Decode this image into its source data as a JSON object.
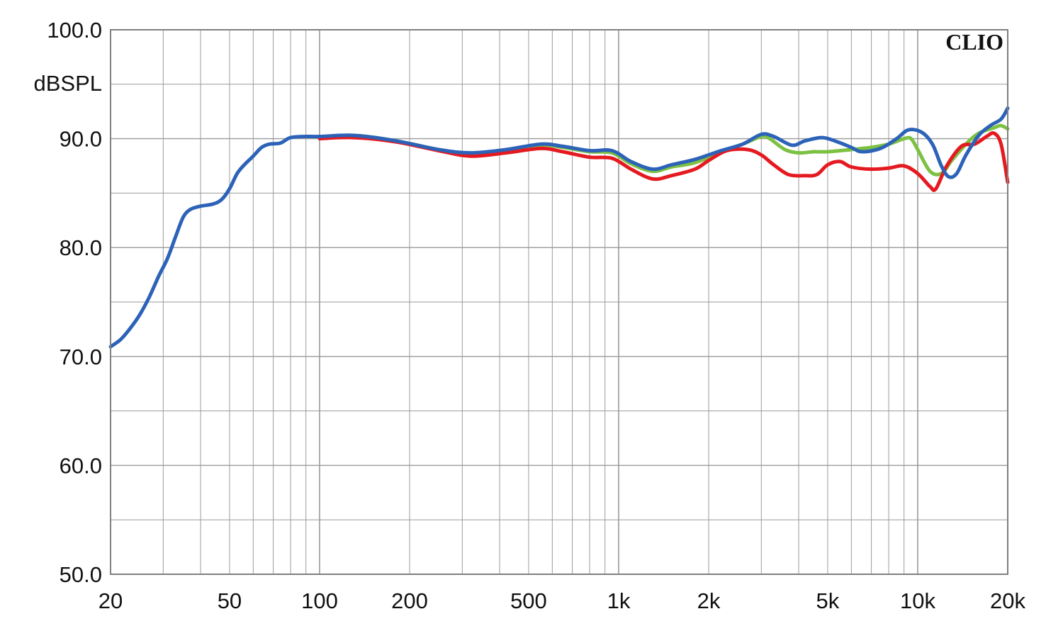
{
  "chart_data": {
    "type": "line",
    "brand": "CLIO",
    "ylabel": "dBSPL",
    "xscale": "log",
    "xlim": [
      20,
      20000
    ],
    "ylim": [
      50,
      100
    ],
    "grid": true,
    "colors": {
      "grid": "#9a9a9a",
      "frame": "#808080"
    },
    "x_tick_values": [
      20,
      50,
      100,
      200,
      500,
      1000,
      2000,
      5000,
      10000,
      20000
    ],
    "x_tick_labels": [
      "20",
      "50",
      "100",
      "200",
      "500",
      "1k",
      "2k",
      "5k",
      "10k",
      "20k"
    ],
    "y_tick_values": [
      100,
      90,
      80,
      70,
      60,
      50
    ],
    "y_tick_labels": [
      "100.0",
      "90.0",
      "80.0",
      "70.0",
      "60.0",
      "50.0"
    ],
    "series": [
      {
        "color": "#7cc142",
        "points": [
          [
            100,
            90.0
          ],
          [
            130,
            90.3
          ],
          [
            180,
            89.8
          ],
          [
            250,
            89.0
          ],
          [
            320,
            88.6
          ],
          [
            420,
            88.9
          ],
          [
            550,
            89.4
          ],
          [
            650,
            89.2
          ],
          [
            800,
            88.8
          ],
          [
            950,
            88.7
          ],
          [
            1100,
            87.7
          ],
          [
            1300,
            87.0
          ],
          [
            1500,
            87.4
          ],
          [
            1800,
            87.8
          ],
          [
            2200,
            88.8
          ],
          [
            2600,
            89.5
          ],
          [
            3000,
            90.2
          ],
          [
            3200,
            90.0
          ],
          [
            3600,
            89.0
          ],
          [
            4000,
            88.7
          ],
          [
            4500,
            88.8
          ],
          [
            5000,
            88.8
          ],
          [
            6000,
            89.0
          ],
          [
            7000,
            89.2
          ],
          [
            8000,
            89.5
          ],
          [
            9000,
            90.0
          ],
          [
            9500,
            90.0
          ],
          [
            10000,
            89.0
          ],
          [
            11000,
            87.0
          ],
          [
            12000,
            86.8
          ],
          [
            13000,
            88.0
          ],
          [
            14500,
            89.5
          ],
          [
            16000,
            90.5
          ],
          [
            18000,
            91.0
          ],
          [
            19000,
            91.2
          ],
          [
            20000,
            90.9
          ]
        ]
      },
      {
        "color": "#e51a20",
        "points": [
          [
            100,
            90.0
          ],
          [
            130,
            90.1
          ],
          [
            180,
            89.7
          ],
          [
            250,
            88.9
          ],
          [
            320,
            88.4
          ],
          [
            420,
            88.7
          ],
          [
            550,
            89.1
          ],
          [
            650,
            88.8
          ],
          [
            800,
            88.3
          ],
          [
            950,
            88.2
          ],
          [
            1100,
            87.2
          ],
          [
            1300,
            86.3
          ],
          [
            1500,
            86.6
          ],
          [
            1800,
            87.2
          ],
          [
            2000,
            88.0
          ],
          [
            2300,
            88.9
          ],
          [
            2700,
            89.0
          ],
          [
            3000,
            88.5
          ],
          [
            3300,
            87.6
          ],
          [
            3700,
            86.7
          ],
          [
            4200,
            86.6
          ],
          [
            4600,
            86.7
          ],
          [
            5000,
            87.6
          ],
          [
            5500,
            87.9
          ],
          [
            6000,
            87.4
          ],
          [
            7000,
            87.2
          ],
          [
            8000,
            87.3
          ],
          [
            9000,
            87.5
          ],
          [
            10000,
            86.8
          ],
          [
            11000,
            85.6
          ],
          [
            11500,
            85.4
          ],
          [
            12500,
            87.5
          ],
          [
            14000,
            89.3
          ],
          [
            15500,
            89.5
          ],
          [
            17000,
            90.2
          ],
          [
            18000,
            90.5
          ],
          [
            19000,
            89.5
          ],
          [
            20000,
            86.0
          ]
        ]
      },
      {
        "color": "#2c62b8",
        "points": [
          [
            20,
            70.9
          ],
          [
            21.5,
            71.5
          ],
          [
            23,
            72.4
          ],
          [
            25,
            73.8
          ],
          [
            27,
            75.5
          ],
          [
            29,
            77.4
          ],
          [
            31,
            79.0
          ],
          [
            33,
            81.0
          ],
          [
            35,
            82.8
          ],
          [
            37,
            83.5
          ],
          [
            40,
            83.8
          ],
          [
            44,
            84.0
          ],
          [
            47,
            84.4
          ],
          [
            50,
            85.4
          ],
          [
            53,
            86.8
          ],
          [
            56,
            87.6
          ],
          [
            60,
            88.4
          ],
          [
            64,
            89.2
          ],
          [
            68,
            89.5
          ],
          [
            74,
            89.6
          ],
          [
            80,
            90.1
          ],
          [
            90,
            90.2
          ],
          [
            100,
            90.2
          ],
          [
            130,
            90.3
          ],
          [
            180,
            89.8
          ],
          [
            250,
            89.0
          ],
          [
            320,
            88.7
          ],
          [
            420,
            89.0
          ],
          [
            550,
            89.5
          ],
          [
            650,
            89.3
          ],
          [
            800,
            88.9
          ],
          [
            950,
            88.9
          ],
          [
            1100,
            87.9
          ],
          [
            1300,
            87.2
          ],
          [
            1500,
            87.6
          ],
          [
            1800,
            88.1
          ],
          [
            2200,
            88.9
          ],
          [
            2600,
            89.5
          ],
          [
            3000,
            90.4
          ],
          [
            3300,
            90.2
          ],
          [
            3800,
            89.4
          ],
          [
            4200,
            89.8
          ],
          [
            4800,
            90.1
          ],
          [
            5400,
            89.7
          ],
          [
            6000,
            89.2
          ],
          [
            6500,
            88.8
          ],
          [
            7500,
            89.1
          ],
          [
            8500,
            90.0
          ],
          [
            9300,
            90.8
          ],
          [
            10300,
            90.6
          ],
          [
            11200,
            89.5
          ],
          [
            12000,
            87.5
          ],
          [
            12700,
            86.5
          ],
          [
            13500,
            86.8
          ],
          [
            14500,
            88.5
          ],
          [
            16000,
            90.3
          ],
          [
            17500,
            91.2
          ],
          [
            19000,
            91.8
          ],
          [
            20000,
            92.8
          ]
        ]
      }
    ]
  }
}
